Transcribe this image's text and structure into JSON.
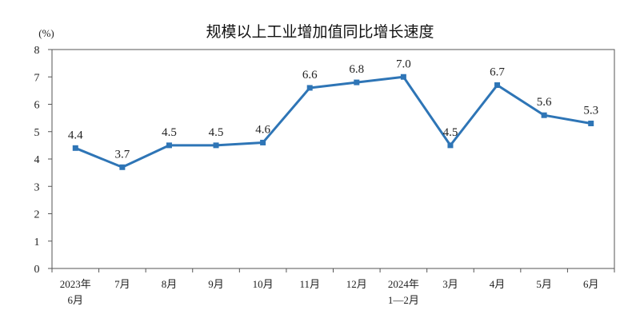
{
  "chart_data": {
    "type": "line",
    "title": "规模以上工业增加值同比增长速度",
    "ylabel": "(%)",
    "ylim": [
      0,
      8
    ],
    "yticks": [
      "0",
      "1",
      "2",
      "3",
      "4",
      "5",
      "6",
      "7",
      "8"
    ],
    "categories": [
      [
        "2023年",
        "6月"
      ],
      [
        "7月"
      ],
      [
        "8月"
      ],
      [
        "9月"
      ],
      [
        "10月"
      ],
      [
        "11月"
      ],
      [
        "12月"
      ],
      [
        "2024年",
        "1—2月"
      ],
      [
        "3月"
      ],
      [
        "4月"
      ],
      [
        "5月"
      ],
      [
        "6月"
      ]
    ],
    "series": [
      {
        "values": [
          4.4,
          3.7,
          4.5,
          4.5,
          4.6,
          6.6,
          6.8,
          7.0,
          4.5,
          6.7,
          5.6,
          5.3
        ],
        "labels": [
          "4.4",
          "3.7",
          "4.5",
          "4.5",
          "4.6",
          "6.6",
          "6.8",
          "7.0",
          "4.5",
          "6.7",
          "5.6",
          "5.3"
        ],
        "color": "#2e75b6"
      }
    ],
    "grid": false
  }
}
